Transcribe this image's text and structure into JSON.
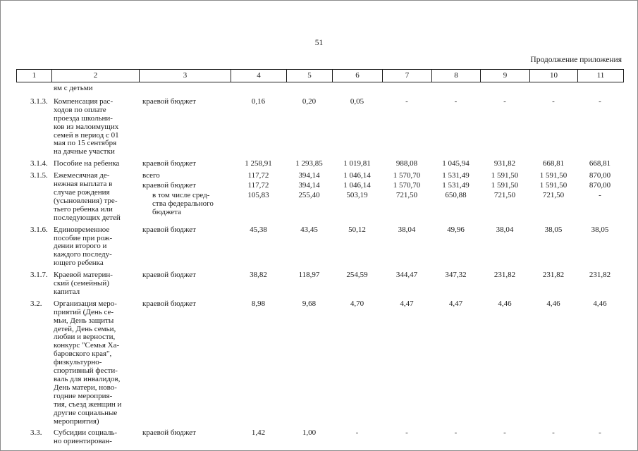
{
  "page": {
    "number": "51",
    "continuation_note": "Продолжение приложения"
  },
  "table": {
    "header_columns": [
      "1",
      "2",
      "3",
      "4",
      "5",
      "6",
      "7",
      "8",
      "9",
      "10",
      "11"
    ],
    "carryover_text": "ям с детьми",
    "rows": [
      {
        "num": "3.1.3.",
        "name": "Компенсация рас-\nходов по оплате\nпроезда школьни-\nков из малоимущих\nсемей в период с 01\nмая по 15 сентября\nна дачные участки",
        "entries": [
          {
            "label": "краевой бюджет",
            "indent": false,
            "values": [
              "0,16",
              "0,20",
              "0,05",
              "-",
              "-",
              "-",
              "-",
              "-"
            ]
          }
        ]
      },
      {
        "num": "3.1.4.",
        "name": "Пособие на ребенка",
        "entries": [
          {
            "label": "краевой бюджет",
            "indent": false,
            "values": [
              "1 258,91",
              "1 293,85",
              "1 019,81",
              "988,08",
              "1 045,94",
              "931,82",
              "668,81",
              "668,81"
            ]
          }
        ]
      },
      {
        "num": "3.1.5.",
        "name": "Ежемесячная де-\nнежная выплата в\nслучае рождения\n(усыновления) тре-\nтьего ребенка или\nпоследующих детей",
        "entries": [
          {
            "label": "всего",
            "indent": false,
            "values": [
              "117,72",
              "394,14",
              "1 046,14",
              "1 570,70",
              "1 531,49",
              "1 591,50",
              "1 591,50",
              "870,00"
            ]
          },
          {
            "label": "краевой бюджет",
            "indent": false,
            "values": [
              "117,72",
              "394,14",
              "1 046,14",
              "1 570,70",
              "1 531,49",
              "1 591,50",
              "1 591,50",
              "870,00"
            ]
          },
          {
            "label": "в том числе сред-\nства федерального\nбюджета",
            "indent": true,
            "values": [
              "105,83",
              "255,40",
              "503,19",
              "721,50",
              "650,88",
              "721,50",
              "721,50",
              "-"
            ]
          }
        ]
      },
      {
        "num": "3.1.6.",
        "name": "Единовременное\nпособие при рож-\nдении второго и\nкаждого последу-\nющего ребенка",
        "entries": [
          {
            "label": "краевой бюджет",
            "indent": false,
            "values": [
              "45,38",
              "43,45",
              "50,12",
              "38,04",
              "49,96",
              "38,04",
              "38,05",
              "38,05"
            ]
          }
        ]
      },
      {
        "num": "3.1.7.",
        "name": "Краевой материн-\nский (семейный)\nкапитал",
        "entries": [
          {
            "label": "краевой бюджет",
            "indent": false,
            "values": [
              "38,82",
              "118,97",
              "254,59",
              "344,47",
              "347,32",
              "231,82",
              "231,82",
              "231,82"
            ]
          }
        ]
      },
      {
        "num": "3.2.",
        "name": "Организация меро-\nприятий (День се-\nмьи, День защиты\nдетей, День семьи,\nлюбви и верности,\nконкурс \"Семья Ха-\nбаровского края\",\nфизкультурно-\nспортивный фести-\nваль для инвалидов,\nДень матери, ново-\nгодние мероприя-\nтия, съезд женщин и\nдругие социальные\nмероприятия)",
        "entries": [
          {
            "label": "краевой бюджет",
            "indent": false,
            "values": [
              "8,98",
              "9,68",
              "4,70",
              "4,47",
              "4,47",
              "4,46",
              "4,46",
              "4,46"
            ]
          }
        ]
      },
      {
        "num": "3.3.",
        "name": "Субсидии социаль-\nно ориентирован-",
        "entries": [
          {
            "label": "краевой бюджет",
            "indent": false,
            "values": [
              "1,42",
              "1,00",
              "-",
              "-",
              "-",
              "-",
              "-",
              "-"
            ]
          }
        ]
      }
    ]
  }
}
